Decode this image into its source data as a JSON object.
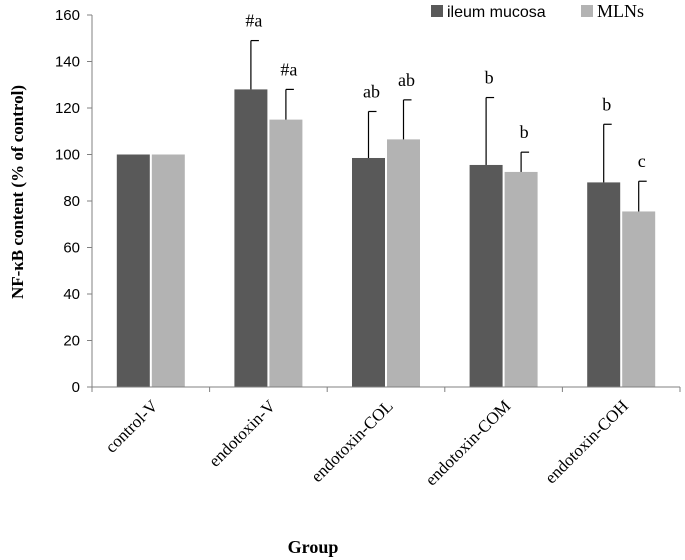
{
  "chart_data": {
    "type": "bar",
    "title": "",
    "xlabel": "Group",
    "ylabel": "NF-κB content (% of control)",
    "ylim": [
      0,
      160
    ],
    "yticks": [
      0,
      20,
      40,
      60,
      80,
      100,
      120,
      140,
      160
    ],
    "grid": false,
    "legend_position": "top-right",
    "categories": [
      "control-V",
      "endotoxin-V",
      "endotoxin-COL",
      "endotoxin-COM",
      "endotoxin-COH"
    ],
    "series": [
      {
        "name": "ileum mucosa",
        "color": "#595959",
        "values": [
          100,
          128,
          98.5,
          95.5,
          88
        ],
        "error": [
          0,
          21,
          20,
          29,
          25
        ],
        "annotations": [
          "",
          "#a",
          "ab",
          "b",
          "b"
        ]
      },
      {
        "name": "MLNs",
        "color": "#b3b3b3",
        "values": [
          100,
          115,
          106.5,
          92.5,
          75.5
        ],
        "error": [
          0,
          13,
          17,
          8.5,
          13
        ],
        "annotations": [
          "",
          "#a",
          "ab",
          "b",
          "c"
        ]
      }
    ]
  }
}
